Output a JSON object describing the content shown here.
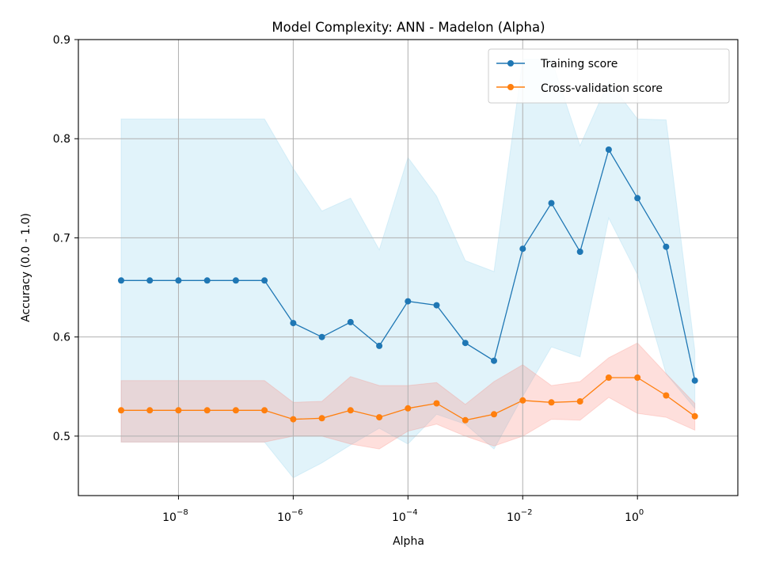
{
  "chart_data": {
    "type": "line",
    "title": "Model Complexity: ANN - Madelon (Alpha)",
    "xlabel": "Alpha",
    "ylabel": "Accuracy (0.0 - 1.0)",
    "xscale": "log",
    "xlim": [
      1.8e-10,
      56.2
    ],
    "ylim": [
      0.44,
      0.9
    ],
    "xticks": [
      {
        "value": 1e-08,
        "label": "10",
        "exp": "−8"
      },
      {
        "value": 1e-06,
        "label": "10",
        "exp": "−6"
      },
      {
        "value": 0.0001,
        "label": "10",
        "exp": "−4"
      },
      {
        "value": 0.01,
        "label": "10",
        "exp": "−2"
      },
      {
        "value": 1,
        "label": "10",
        "exp": "0"
      }
    ],
    "yticks": [
      0.5,
      0.6,
      0.7,
      0.8,
      0.9
    ],
    "grid": true,
    "legend_position": "top-right",
    "x": [
      1e-09,
      3.16e-09,
      1e-08,
      3.16e-08,
      1e-07,
      3.16e-07,
      1e-06,
      3.16e-06,
      1e-05,
      3.16e-05,
      0.0001,
      0.000316,
      0.001,
      0.00316,
      0.01,
      0.0316,
      0.1,
      0.316,
      1,
      3.16,
      10
    ],
    "series": [
      {
        "name": "Training score",
        "color": "#1f77b4",
        "values": [
          0.657,
          0.657,
          0.657,
          0.657,
          0.657,
          0.657,
          0.614,
          0.6,
          0.615,
          0.591,
          0.636,
          0.632,
          0.594,
          0.576,
          0.689,
          0.735,
          0.686,
          0.789,
          0.74,
          0.691,
          0.556
        ],
        "band_lower": [
          0.494,
          0.494,
          0.494,
          0.494,
          0.494,
          0.494,
          0.458,
          0.473,
          0.491,
          0.508,
          0.492,
          0.522,
          0.512,
          0.487,
          0.54,
          0.59,
          0.58,
          0.72,
          0.663,
          0.563,
          0.528
        ],
        "band_upper": [
          0.82,
          0.82,
          0.82,
          0.82,
          0.82,
          0.82,
          0.77,
          0.727,
          0.74,
          0.688,
          0.781,
          0.742,
          0.677,
          0.666,
          0.88,
          0.88,
          0.793,
          0.858,
          0.82,
          0.819,
          0.586
        ]
      },
      {
        "name": "Cross-validation score",
        "color": "#ff7f0e",
        "values": [
          0.526,
          0.526,
          0.526,
          0.526,
          0.526,
          0.526,
          0.517,
          0.518,
          0.526,
          0.519,
          0.528,
          0.533,
          0.516,
          0.522,
          0.536,
          0.534,
          0.535,
          0.559,
          0.559,
          0.541,
          0.52
        ],
        "band_lower": [
          0.494,
          0.494,
          0.494,
          0.494,
          0.494,
          0.494,
          0.5,
          0.5,
          0.492,
          0.487,
          0.505,
          0.512,
          0.5,
          0.49,
          0.5,
          0.517,
          0.516,
          0.539,
          0.523,
          0.519,
          0.506
        ],
        "band_upper": [
          0.556,
          0.556,
          0.556,
          0.556,
          0.556,
          0.556,
          0.534,
          0.535,
          0.56,
          0.551,
          0.551,
          0.554,
          0.532,
          0.555,
          0.572,
          0.551,
          0.555,
          0.579,
          0.594,
          0.563,
          0.533
        ]
      }
    ]
  }
}
